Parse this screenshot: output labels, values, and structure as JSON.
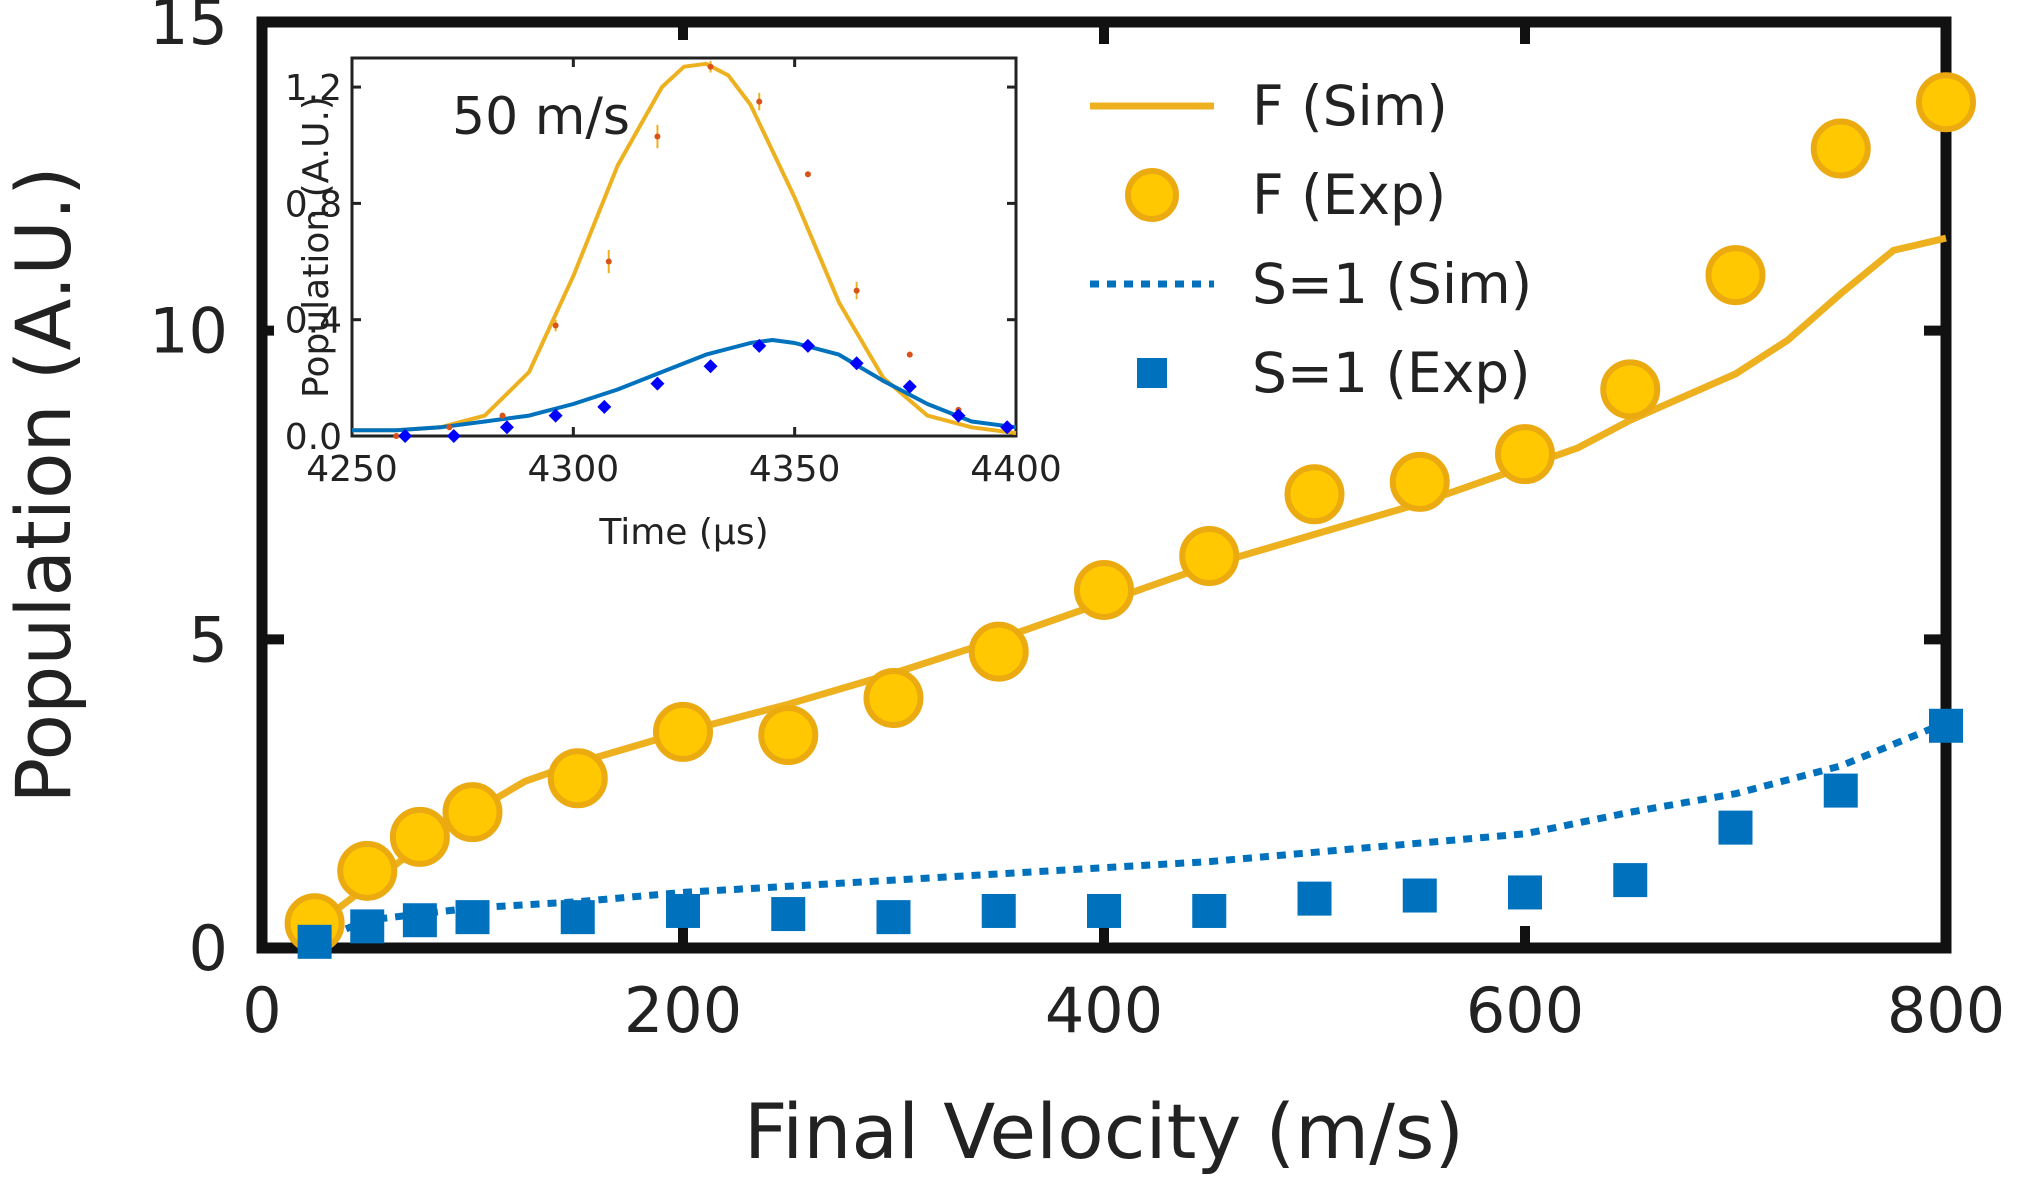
{
  "chart_data": [
    {
      "type": "scatter",
      "xlabel": "Final Velocity (m/s)",
      "ylabel": "Population (A.U.)",
      "xlim": [
        0,
        800
      ],
      "ylim": [
        0,
        15
      ],
      "xticks": [
        "0",
        "200",
        "400",
        "600",
        "800"
      ],
      "yticks": [
        "0",
        "5",
        "10",
        "15"
      ],
      "grid": false,
      "legend_position": "top-right",
      "series": [
        {
          "name": "F (Sim)",
          "kind": "line",
          "style": "solid",
          "color": "#EDB120",
          "x": [
            25,
            50,
            75,
            100,
            125,
            150,
            200,
            250,
            300,
            350,
            400,
            450,
            500,
            550,
            600,
            625,
            650,
            700,
            725,
            750,
            775,
            800
          ],
          "y": [
            0.35,
            1.0,
            1.65,
            2.2,
            2.7,
            3.0,
            3.5,
            3.95,
            4.45,
            5.0,
            5.6,
            6.2,
            6.7,
            7.2,
            7.8,
            8.1,
            8.55,
            9.3,
            9.85,
            10.6,
            11.3,
            11.5
          ]
        },
        {
          "name": "F (Exp)",
          "kind": "markers",
          "marker": "circle",
          "color": "#FFC800",
          "x": [
            25,
            50,
            75,
            100,
            150,
            200,
            250,
            300,
            350,
            400,
            450,
            500,
            550,
            600,
            650,
            700,
            750,
            800
          ],
          "y": [
            0.4,
            1.25,
            1.8,
            2.2,
            2.75,
            3.5,
            3.45,
            4.05,
            4.8,
            5.8,
            6.35,
            7.35,
            7.55,
            8.0,
            9.05,
            10.9,
            12.95,
            13.7
          ]
        },
        {
          "name": "S=1 (Sim)",
          "kind": "line",
          "style": "dotted",
          "color": "#0072BD",
          "x": [
            25,
            50,
            100,
            150,
            200,
            250,
            300,
            350,
            400,
            450,
            500,
            550,
            600,
            650,
            700,
            750,
            800
          ],
          "y": [
            0.1,
            0.45,
            0.65,
            0.75,
            0.9,
            1.0,
            1.1,
            1.2,
            1.3,
            1.4,
            1.55,
            1.7,
            1.85,
            2.2,
            2.5,
            2.95,
            3.65
          ]
        },
        {
          "name": "S=1 (Exp)",
          "kind": "markers",
          "marker": "square",
          "color": "#0072BD",
          "x": [
            25,
            50,
            75,
            100,
            150,
            200,
            250,
            300,
            350,
            400,
            450,
            500,
            550,
            600,
            650,
            700,
            750,
            800
          ],
          "y": [
            0.1,
            0.35,
            0.45,
            0.5,
            0.5,
            0.6,
            0.55,
            0.5,
            0.6,
            0.6,
            0.6,
            0.8,
            0.85,
            0.9,
            1.1,
            1.95,
            2.55,
            3.6
          ]
        }
      ]
    },
    {
      "type": "scatter",
      "annotation": "50 m/s",
      "xlabel": "Time (µs)",
      "ylabel": "Population (A.U.)",
      "xlim": [
        4250,
        4400
      ],
      "ylim": [
        0,
        1.3
      ],
      "xticks": [
        "4250",
        "4300",
        "4350",
        "4400"
      ],
      "yticks": [
        "0.0",
        "0.4",
        "0.8",
        "1.2"
      ],
      "xtick_values": [
        4250,
        4300,
        4350,
        4400
      ],
      "ytick_values": [
        0,
        0.4,
        0.8,
        1.2
      ],
      "grid": false,
      "series": [
        {
          "kind": "line",
          "color": "#EDB120",
          "x": [
            4250,
            4260,
            4270,
            4280,
            4290,
            4300,
            4310,
            4320,
            4325,
            4330,
            4335,
            4340,
            4350,
            4360,
            4370,
            4380,
            4390,
            4400
          ],
          "y": [
            0.02,
            0.02,
            0.03,
            0.07,
            0.22,
            0.55,
            0.93,
            1.2,
            1.27,
            1.28,
            1.24,
            1.14,
            0.82,
            0.46,
            0.2,
            0.07,
            0.03,
            0.01
          ]
        },
        {
          "kind": "markers",
          "marker": "errorbar-dot",
          "color": "#D95319",
          "x": [
            4260,
            4272,
            4284,
            4296,
            4308,
            4319,
            4331,
            4342,
            4353,
            4364,
            4376,
            4387,
            4398
          ],
          "y": [
            0.0,
            0.03,
            0.07,
            0.38,
            0.6,
            1.03,
            1.27,
            1.15,
            0.9,
            0.5,
            0.28,
            0.09,
            0.02
          ],
          "err": [
            0.01,
            0.01,
            0.01,
            0.02,
            0.04,
            0.04,
            0.02,
            0.03,
            0.01,
            0.03,
            0.01,
            0.01,
            0.01
          ]
        },
        {
          "kind": "line",
          "color": "#0072BD",
          "x": [
            4250,
            4260,
            4270,
            4280,
            4290,
            4300,
            4310,
            4320,
            4330,
            4340,
            4345,
            4350,
            4360,
            4370,
            4380,
            4390,
            4400
          ],
          "y": [
            0.02,
            0.02,
            0.03,
            0.05,
            0.07,
            0.11,
            0.16,
            0.22,
            0.28,
            0.32,
            0.33,
            0.32,
            0.28,
            0.19,
            0.11,
            0.05,
            0.03
          ]
        },
        {
          "kind": "markers",
          "marker": "diamond",
          "color": "#0000FF",
          "x": [
            4262,
            4273,
            4285,
            4296,
            4307,
            4319,
            4331,
            4342,
            4353,
            4364,
            4376,
            4387,
            4398
          ],
          "y": [
            0.0,
            0.0,
            0.03,
            0.07,
            0.1,
            0.18,
            0.24,
            0.31,
            0.31,
            0.25,
            0.17,
            0.07,
            0.03
          ],
          "err": [
            0.01,
            0.01,
            0.01,
            0.01,
            0.01,
            0.02,
            0.01,
            0.02,
            0.02,
            0.01,
            0.01,
            0.01,
            0.01
          ]
        }
      ]
    }
  ]
}
